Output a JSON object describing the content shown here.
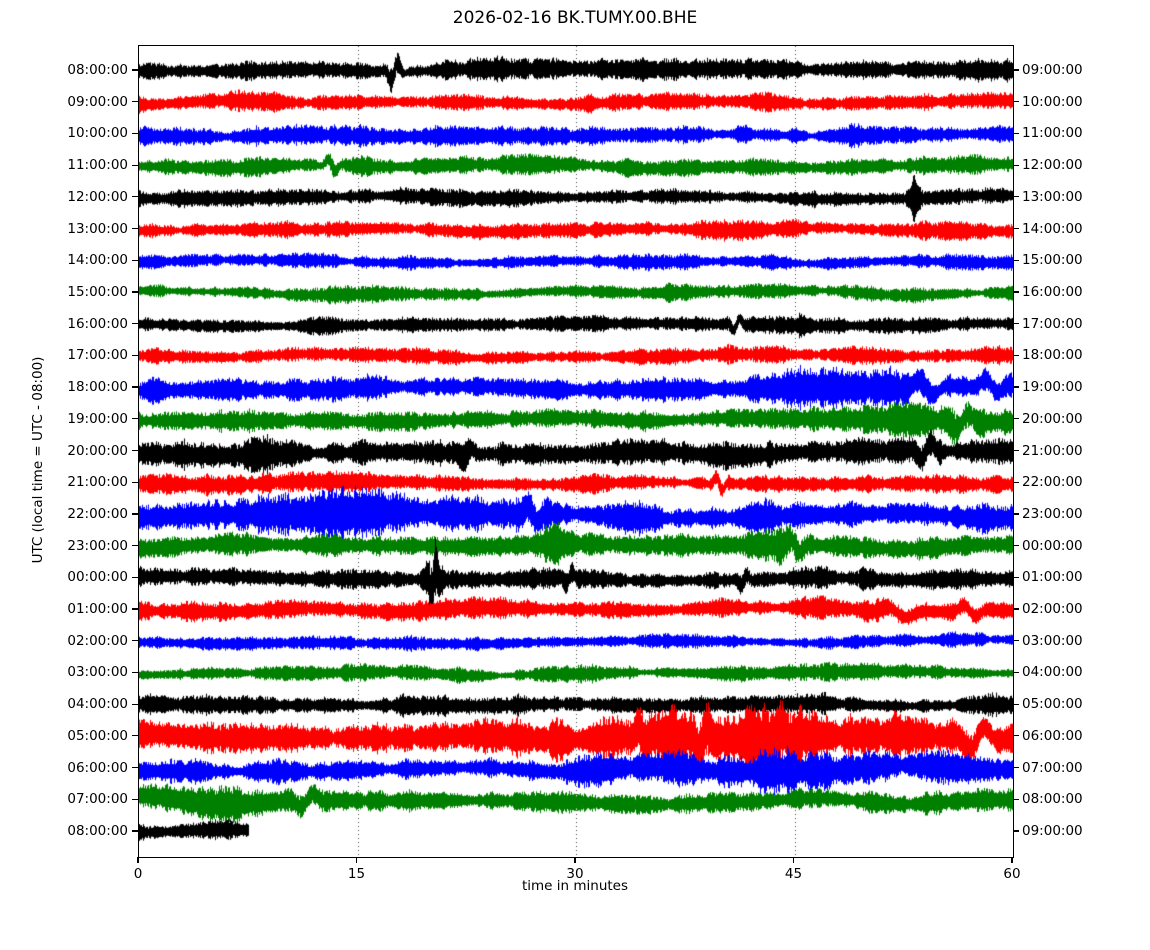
{
  "title": "2026-02-16 BK.TUMY.00.BHE",
  "axes": {
    "xlabel": "time in minutes",
    "ylabel": "UTC (local time = UTC - 08:00)",
    "x_ticks": [
      0,
      15,
      30,
      45,
      60
    ],
    "xlim": [
      0,
      60
    ],
    "grid_minutes": [
      15,
      30,
      45
    ],
    "grid_style": "dotted"
  },
  "colors": {
    "black": "#000000",
    "red": "#ff0000",
    "blue": "#0000ff",
    "green": "#008000",
    "frame": "#000000",
    "grid": "#444444",
    "background": "#ffffff"
  },
  "chart_data": {
    "type": "line",
    "subtype": "seismogram-dayplot",
    "title": "2026-02-16 BK.TUMY.00.BHE",
    "xlabel": "time in minutes",
    "ylabel": "UTC (local time = UTC - 08:00)",
    "xlim": [
      0,
      60
    ],
    "x_ticks": [
      0,
      15,
      30,
      45,
      60
    ],
    "grid_minutes": [
      15,
      30,
      45
    ],
    "interval_minutes": 60,
    "rows": [
      {
        "utc": "08:00:00",
        "end": "09:00:00",
        "color": "black",
        "amp": 1.0,
        "wander": 1.0,
        "stop": 60,
        "swings": [
          {
            "m": 17.5,
            "w": 0.55,
            "a": -11
          }
        ],
        "bursts": [
          {
            "m": 17.5,
            "w": 0.5,
            "g": 0.8
          }
        ]
      },
      {
        "utc": "09:00:00",
        "end": "10:00:00",
        "color": "red",
        "amp": 0.85,
        "wander": 1.0,
        "stop": 60,
        "swings": [],
        "bursts": []
      },
      {
        "utc": "10:00:00",
        "end": "11:00:00",
        "color": "blue",
        "amp": 0.95,
        "wander": 1.0,
        "stop": 60,
        "swings": [],
        "bursts": []
      },
      {
        "utc": "11:00:00",
        "end": "12:00:00",
        "color": "green",
        "amp": 0.9,
        "wander": 1.1,
        "stop": 60,
        "swings": [
          {
            "m": 13.2,
            "w": 0.6,
            "a": 7
          }
        ],
        "bursts": [
          {
            "m": 13.2,
            "w": 0.4,
            "g": 0.8
          }
        ]
      },
      {
        "utc": "12:00:00",
        "end": "13:00:00",
        "color": "black",
        "amp": 0.85,
        "wander": 1.0,
        "stop": 60,
        "swings": [],
        "bursts": [
          {
            "m": 53.3,
            "w": 0.35,
            "g": 2.8
          }
        ]
      },
      {
        "utc": "13:00:00",
        "end": "14:00:00",
        "color": "red",
        "amp": 0.85,
        "wander": 1.0,
        "stop": 60,
        "swings": [],
        "bursts": []
      },
      {
        "utc": "14:00:00",
        "end": "15:00:00",
        "color": "blue",
        "amp": 0.75,
        "wander": 1.0,
        "stop": 60,
        "swings": [],
        "bursts": []
      },
      {
        "utc": "15:00:00",
        "end": "16:00:00",
        "color": "green",
        "amp": 0.8,
        "wander": 1.0,
        "stop": 60,
        "swings": [],
        "bursts": []
      },
      {
        "utc": "16:00:00",
        "end": "17:00:00",
        "color": "black",
        "amp": 0.8,
        "wander": 1.0,
        "stop": 60,
        "swings": [
          {
            "m": 41,
            "w": 0.5,
            "a": -7
          }
        ],
        "bursts": [
          {
            "m": 45.5,
            "w": 0.5,
            "g": 0.7
          }
        ]
      },
      {
        "utc": "17:00:00",
        "end": "18:00:00",
        "color": "red",
        "amp": 0.85,
        "wander": 1.0,
        "stop": 60,
        "swings": [],
        "bursts": []
      },
      {
        "utc": "18:00:00",
        "end": "19:00:00",
        "color": "blue",
        "amp": 1.15,
        "wander": 1.2,
        "stop": 60,
        "swings": [
          {
            "m": 54,
            "w": 1.2,
            "a": 9
          },
          {
            "m": 58.5,
            "w": 1.0,
            "a": 8
          }
        ],
        "bursts": [
          {
            "m": 48,
            "w": 7,
            "g": 0.9
          }
        ]
      },
      {
        "utc": "19:00:00",
        "end": "20:00:00",
        "color": "green",
        "amp": 1.05,
        "wander": 1.2,
        "stop": 60,
        "swings": [
          {
            "m": 56.5,
            "w": 1.0,
            "a": -9
          }
        ],
        "bursts": [
          {
            "m": 54,
            "w": 5,
            "g": 0.7
          }
        ]
      },
      {
        "utc": "20:00:00",
        "end": "21:00:00",
        "color": "black",
        "amp": 1.25,
        "wander": 1.8,
        "stop": 60,
        "swings": [
          {
            "m": 22.5,
            "w": 0.7,
            "a": -6
          },
          {
            "m": 54,
            "w": 0.8,
            "a": -10
          }
        ],
        "bursts": [
          {
            "m": 8,
            "w": 2,
            "g": 0.5
          }
        ]
      },
      {
        "utc": "21:00:00",
        "end": "22:00:00",
        "color": "red",
        "amp": 0.95,
        "wander": 1.0,
        "stop": 60,
        "swings": [
          {
            "m": 39.8,
            "w": 0.5,
            "a": 8
          }
        ],
        "bursts": []
      },
      {
        "utc": "22:00:00",
        "end": "23:00:00",
        "color": "blue",
        "amp": 1.5,
        "wander": 1.5,
        "stop": 60,
        "swings": [
          {
            "m": 27,
            "w": 0.8,
            "a": 9
          }
        ],
        "bursts": [
          {
            "m": 12,
            "w": 9,
            "g": 0.6
          }
        ]
      },
      {
        "utc": "23:00:00",
        "end": "00:00:00",
        "color": "green",
        "amp": 1.1,
        "wander": 1.2,
        "stop": 60,
        "swings": [
          {
            "m": 45,
            "w": 0.8,
            "a": 8
          }
        ],
        "bursts": [
          {
            "m": 28.5,
            "w": 0.8,
            "g": 1.0
          },
          {
            "m": 44,
            "w": 2,
            "g": 0.8
          }
        ]
      },
      {
        "utc": "00:00:00",
        "end": "01:00:00",
        "color": "black",
        "amp": 1.0,
        "wander": 1.2,
        "stop": 60,
        "swings": [
          {
            "m": 20.2,
            "w": 0.35,
            "a": -16
          },
          {
            "m": 29.5,
            "w": 0.5,
            "a": -7
          },
          {
            "m": 41.5,
            "w": 0.5,
            "a": -6
          }
        ],
        "bursts": [
          {
            "m": 20.2,
            "w": 0.5,
            "g": 2.5
          },
          {
            "m": 50,
            "w": 0.5,
            "g": 0.8
          }
        ]
      },
      {
        "utc": "01:00:00",
        "end": "02:00:00",
        "color": "red",
        "amp": 0.95,
        "wander": 1.1,
        "stop": 60,
        "swings": [
          {
            "m": 52,
            "w": 1.5,
            "a": 6
          },
          {
            "m": 57,
            "w": 1.0,
            "a": 7
          }
        ],
        "bursts": [
          {
            "m": 49,
            "w": 4,
            "g": 0.5
          }
        ]
      },
      {
        "utc": "02:00:00",
        "end": "03:00:00",
        "color": "blue",
        "amp": 0.75,
        "wander": 1.0,
        "stop": 60,
        "swings": [],
        "bursts": []
      },
      {
        "utc": "03:00:00",
        "end": "04:00:00",
        "color": "green",
        "amp": 0.8,
        "wander": 1.0,
        "stop": 60,
        "swings": [],
        "bursts": []
      },
      {
        "utc": "04:00:00",
        "end": "05:00:00",
        "color": "black",
        "amp": 1.0,
        "wander": 1.1,
        "stop": 60,
        "swings": [],
        "bursts": []
      },
      {
        "utc": "05:00:00",
        "end": "06:00:00",
        "color": "red",
        "amp": 1.55,
        "wander": 1.6,
        "stop": 60,
        "swings": [
          {
            "m": 34.5,
            "w": 0.6,
            "a": 12
          },
          {
            "m": 38.7,
            "w": 0.7,
            "a": -12
          },
          {
            "m": 44.5,
            "w": 0.8,
            "a": 10
          },
          {
            "m": 57.5,
            "w": 1.2,
            "a": -14
          }
        ],
        "bursts": [
          {
            "m": 42,
            "w": 11,
            "g": 1.0
          }
        ]
      },
      {
        "utc": "06:00:00",
        "end": "07:00:00",
        "color": "blue",
        "amp": 1.25,
        "wander": 1.4,
        "stop": 60,
        "swings": [],
        "bursts": [
          {
            "m": 45,
            "w": 11,
            "g": 0.7
          }
        ]
      },
      {
        "utc": "07:00:00",
        "end": "08:00:00",
        "color": "green",
        "amp": 1.1,
        "wander": 1.9,
        "stop": 60,
        "swings": [
          {
            "m": 11.5,
            "w": 1.0,
            "a": -8
          }
        ],
        "bursts": [
          {
            "m": 5,
            "w": 3,
            "g": 0.6
          }
        ]
      },
      {
        "utc": "08:00:00",
        "end": "09:00:00",
        "color": "black",
        "amp": 0.85,
        "wander": 1.0,
        "stop": 7.5,
        "swings": [],
        "bursts": []
      }
    ]
  }
}
